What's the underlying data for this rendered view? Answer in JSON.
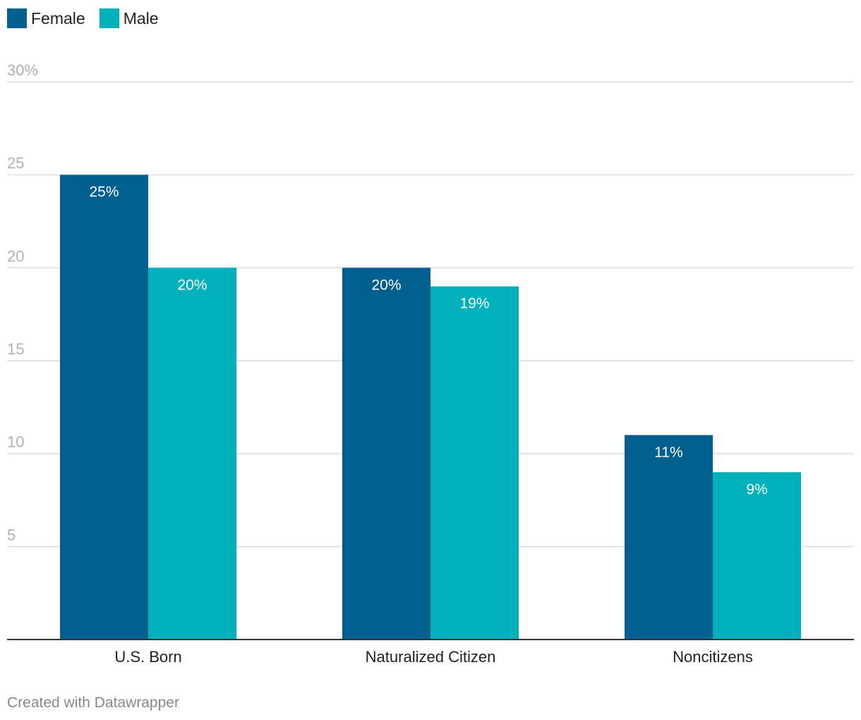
{
  "chart_data": {
    "type": "bar",
    "categories": [
      "U.S. Born",
      "Naturalized Citizen",
      "Noncitizens"
    ],
    "series": [
      {
        "name": "Female",
        "values": [
          25,
          20,
          11
        ],
        "color": "#005f8f",
        "labels": [
          "25%",
          "20%",
          "11%"
        ]
      },
      {
        "name": "Male",
        "values": [
          20,
          19,
          9
        ],
        "color": "#00b0ba",
        "labels": [
          "20%",
          "19%",
          "9%"
        ]
      }
    ],
    "y_ticks": [
      5,
      10,
      15,
      20,
      25,
      30
    ],
    "y_tick_labels": [
      "5",
      "10",
      "15",
      "20",
      "25",
      "30%"
    ],
    "ylim": [
      0,
      30
    ],
    "grid": true,
    "legend_position": "top-left"
  },
  "legend": [
    {
      "label": "Female",
      "color": "#005f8f"
    },
    {
      "label": "Male",
      "color": "#00b0ba"
    }
  ],
  "footer": {
    "credit": "Created with Datawrapper"
  }
}
